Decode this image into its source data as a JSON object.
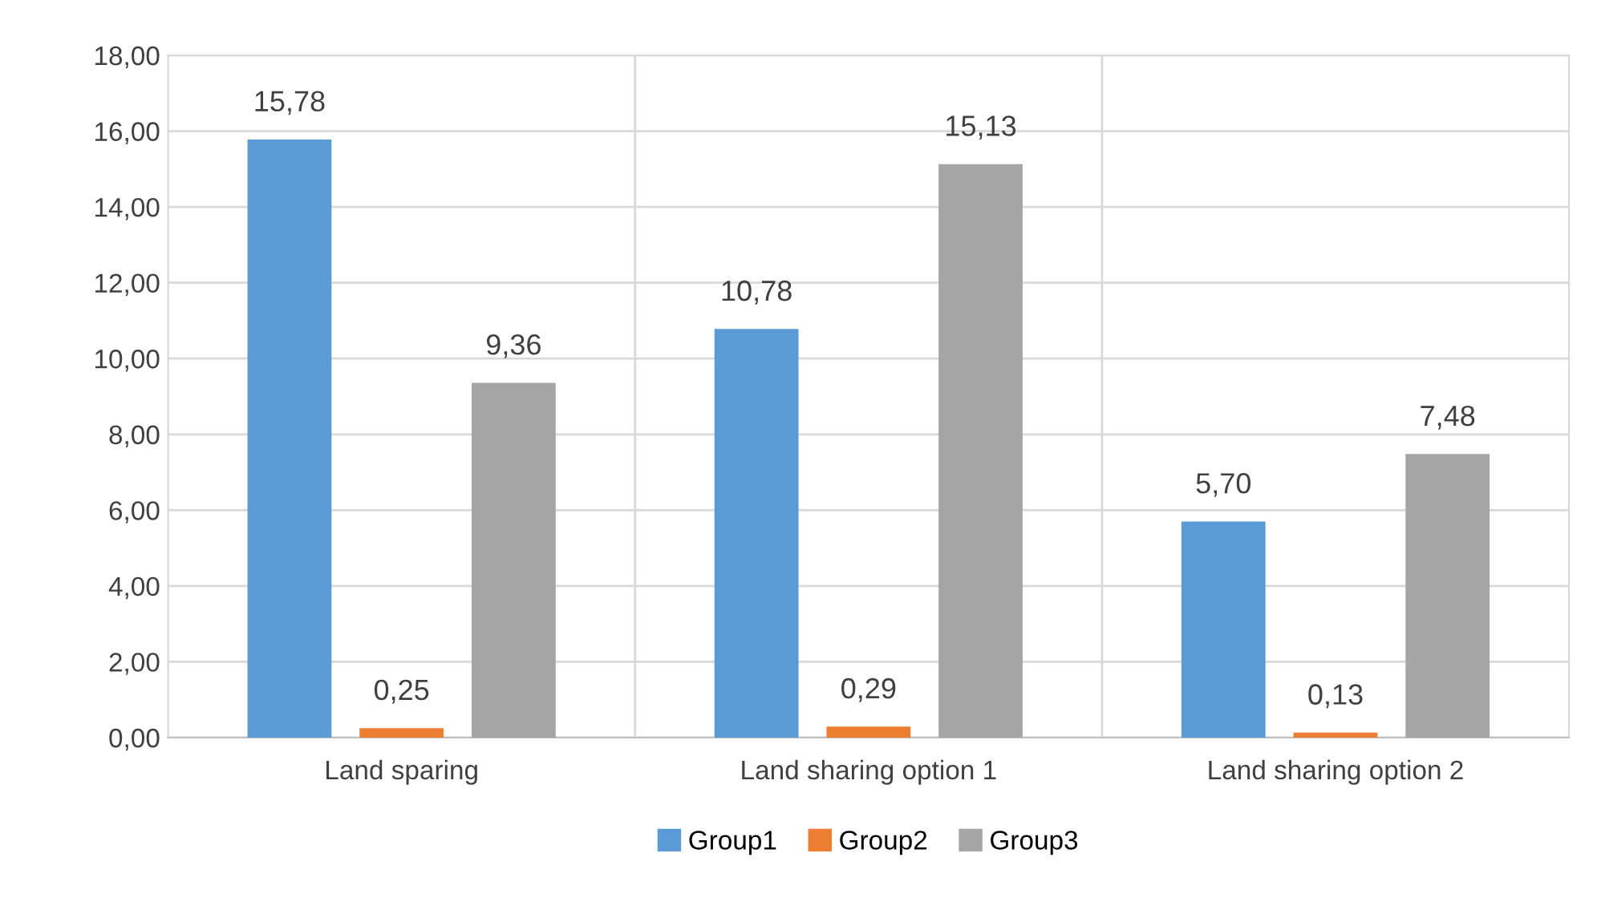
{
  "chart_data": {
    "type": "bar",
    "categories": [
      "Land sparing",
      "Land sharing option 1",
      "Land sharing option 2"
    ],
    "series": [
      {
        "name": "Group1",
        "color": "#5b9bd5",
        "values": [
          15.78,
          10.78,
          5.7
        ],
        "value_labels": [
          "15,78",
          "10,78",
          "5,70"
        ]
      },
      {
        "name": "Group2",
        "color": "#ed7d31",
        "values": [
          0.25,
          0.29,
          0.13
        ],
        "value_labels": [
          "0,25",
          "0,29",
          "0,13"
        ]
      },
      {
        "name": "Group3",
        "color": "#a5a5a5",
        "values": [
          9.36,
          15.13,
          7.48
        ],
        "value_labels": [
          "9,36",
          "15,13",
          "7,48"
        ]
      }
    ],
    "ylim": [
      0,
      18
    ],
    "yticks": [
      {
        "value": 0,
        "label": "0,00"
      },
      {
        "value": 2,
        "label": "2,00"
      },
      {
        "value": 4,
        "label": "4,00"
      },
      {
        "value": 6,
        "label": "6,00"
      },
      {
        "value": 8,
        "label": "8,00"
      },
      {
        "value": 10,
        "label": "10,00"
      },
      {
        "value": 12,
        "label": "12,00"
      },
      {
        "value": 14,
        "label": "14,00"
      },
      {
        "value": 16,
        "label": "16,00"
      },
      {
        "value": 18,
        "label": "18,00"
      }
    ],
    "grid": true,
    "legend": "bottom"
  }
}
